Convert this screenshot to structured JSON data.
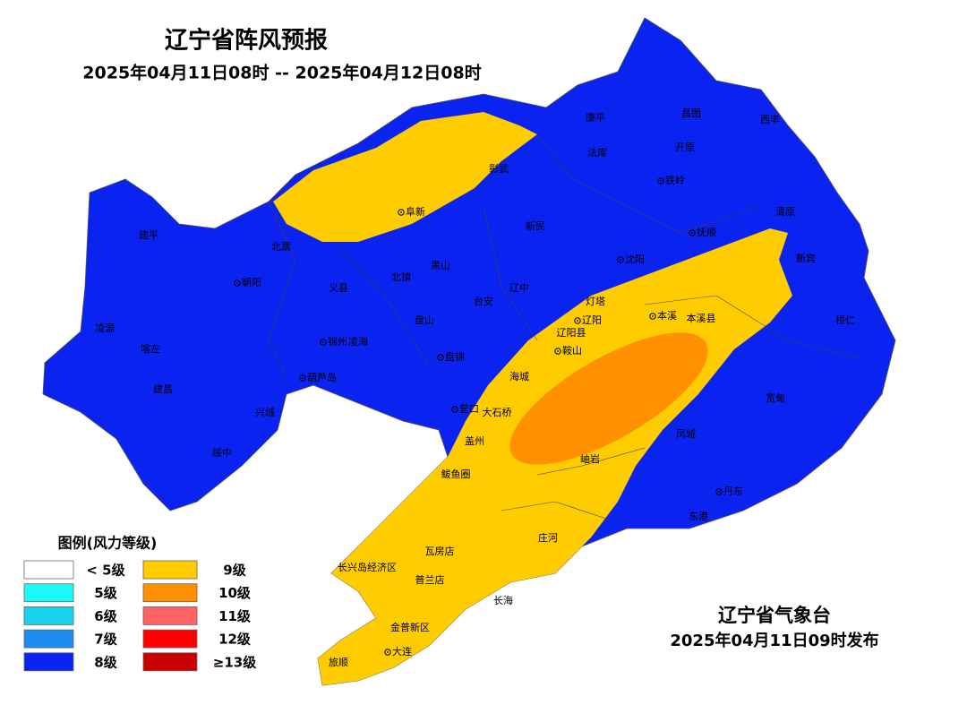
{
  "header": {
    "title": "辽宁省阵风预报",
    "subtitle": "2025年04月11日08时 -- 2025年04月12日08时"
  },
  "legend": {
    "title": "图例(风力等级)",
    "items": [
      {
        "label": "< 5级",
        "color": "#ffffff"
      },
      {
        "label": "5级",
        "color": "#1ef8f8"
      },
      {
        "label": "6级",
        "color": "#18d2ee"
      },
      {
        "label": "7级",
        "color": "#1e8cf0"
      },
      {
        "label": "8级",
        "color": "#0a23f0"
      },
      {
        "label": "9级",
        "color": "#ffcc00"
      },
      {
        "label": "10级",
        "color": "#ff9000"
      },
      {
        "label": "11级",
        "color": "#ff6464"
      },
      {
        "label": "12级",
        "color": "#ff0000"
      },
      {
        "label": "≥13级",
        "color": "#c80000"
      }
    ]
  },
  "cities": [
    "康平",
    "昌图",
    "西丰",
    "法库",
    "开原",
    "彰武",
    "铁岭",
    "阜新",
    "清原",
    "建平",
    "北票",
    "新民",
    "抚顺",
    "沈阳",
    "新宾",
    "朝阳",
    "义县",
    "北镇",
    "黑山",
    "辽中",
    "灯塔",
    "台安",
    "本溪",
    "本溪县",
    "桓仁",
    "辽阳",
    "辽阳县",
    "凌源",
    "盘山",
    "锦州",
    "凌海",
    "喀左",
    "鞍山",
    "盘锦",
    "海城",
    "葫芦岛",
    "建昌",
    "宽甸",
    "兴城",
    "营口",
    "大石桥",
    "盖州",
    "凤城",
    "绥中",
    "岫岩",
    "鲅鱼圈",
    "丹东",
    "东港",
    "庄河",
    "瓦房店",
    "长兴岛经济区",
    "普兰店",
    "长海",
    "金普新区",
    "大连",
    "旅顺"
  ],
  "footer": {
    "agency": "辽宁省气象台",
    "issued": "2025年04月11日09时发布"
  }
}
